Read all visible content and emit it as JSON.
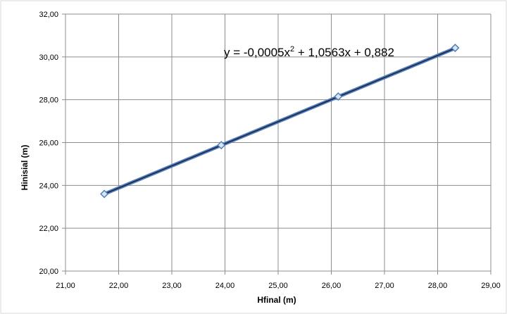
{
  "chart_data": {
    "type": "scatter",
    "xlabel": "Hfinal (m)",
    "ylabel": "Hinisial (m)",
    "xlim": [
      21,
      29
    ],
    "ylim": [
      20,
      32
    ],
    "x_ticks": [
      "21,00",
      "22,00",
      "23,00",
      "24,00",
      "25,00",
      "26,00",
      "27,00",
      "28,00",
      "29,00"
    ],
    "y_ticks": [
      "20,00",
      "22,00",
      "24,00",
      "26,00",
      "28,00",
      "30,00",
      "32,00"
    ],
    "grid": true,
    "series": [
      {
        "x": [
          21.73,
          23.93,
          26.13,
          28.33
        ],
        "y": [
          23.6,
          25.88,
          28.15,
          30.42
        ],
        "marker": "diamond",
        "color": "#4f81bd"
      }
    ],
    "trendline": {
      "type": "polynomial",
      "degree": 2,
      "coefficients": [
        -0.0005,
        1.0563,
        0.882
      ],
      "color": "#1f1f3f",
      "equation_parts": {
        "prefix": "y = -0,0005x",
        "exponent": "2",
        "suffix": " + 1,0563x + 0,882"
      }
    }
  }
}
